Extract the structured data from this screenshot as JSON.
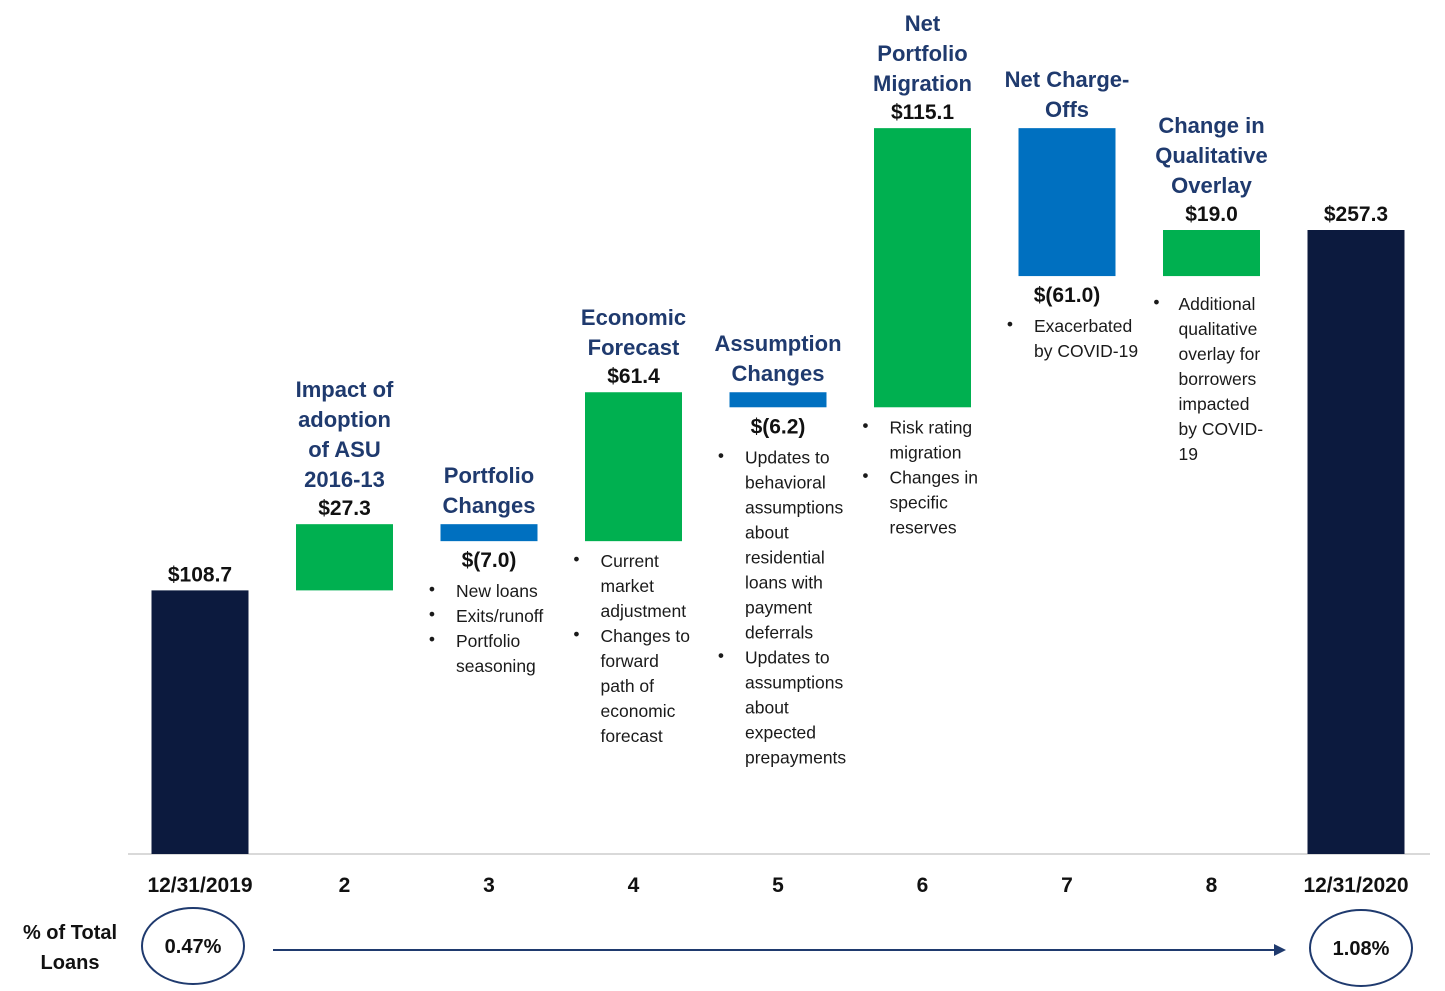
{
  "chart_data": {
    "type": "bar",
    "subtype": "waterfall",
    "categories": [
      "12/31/2019",
      "2",
      "3",
      "4",
      "5",
      "6",
      "7",
      "8",
      "12/31/2020"
    ],
    "steps": [
      {
        "category": "12/31/2019",
        "kind": "total",
        "value": 108.7,
        "label": "$108.7",
        "title": [],
        "bullets": [],
        "color": "#0c1a3e"
      },
      {
        "category": "2",
        "kind": "increase",
        "value": 27.3,
        "label": "$27.3",
        "title": [
          "Impact of",
          "adoption",
          "of ASU",
          "2016-13"
        ],
        "bullets": [],
        "color": "#00b050"
      },
      {
        "category": "3",
        "kind": "decrease",
        "value": -7.0,
        "label": "$(7.0)",
        "title": [
          "Portfolio",
          "Changes"
        ],
        "bullets": [
          [
            "New loans"
          ],
          [
            "Exits/runoff"
          ],
          [
            "Portfolio",
            "seasoning"
          ]
        ],
        "color": "#0070c0"
      },
      {
        "category": "4",
        "kind": "increase",
        "value": 61.4,
        "label": "$61.4",
        "title": [
          "Economic",
          "Forecast"
        ],
        "bullets": [
          [
            "Current",
            "market",
            "adjustment"
          ],
          [
            "Changes to",
            "forward",
            "path of",
            "economic",
            "forecast"
          ]
        ],
        "color": "#00b050"
      },
      {
        "category": "5",
        "kind": "decrease",
        "value": -6.2,
        "label": "$(6.2)",
        "title": [
          "Assumption",
          "Changes"
        ],
        "bullets": [
          [
            "Updates to",
            "behavioral",
            "assumptions",
            "about",
            "residential",
            "loans with",
            "payment",
            "deferrals"
          ],
          [
            "Updates to",
            "assumptions",
            "about",
            "expected",
            "prepayments"
          ]
        ],
        "color": "#0070c0"
      },
      {
        "category": "6",
        "kind": "increase",
        "value": 115.1,
        "label": "$115.1",
        "title": [
          "Net",
          "Portfolio",
          "Migration"
        ],
        "bullets": [
          [
            "Risk rating",
            "migration"
          ],
          [
            "Changes in",
            "specific",
            "reserves"
          ]
        ],
        "color": "#00b050"
      },
      {
        "category": "7",
        "kind": "decrease",
        "value": -61.0,
        "label": "$(61.0)",
        "title": [
          "Net Charge-",
          "Offs"
        ],
        "bullets": [
          [
            "Exacerbated",
            "by COVID-19"
          ]
        ],
        "color": "#0070c0"
      },
      {
        "category": "8",
        "kind": "increase",
        "value": 19.0,
        "label": "$19.0",
        "title": [
          "Change in",
          "Qualitative",
          "Overlay"
        ],
        "bullets": [
          [
            "Additional",
            "qualitative",
            "overlay for",
            "borrowers",
            "impacted",
            "by COVID-",
            "19"
          ]
        ],
        "color": "#00b050"
      },
      {
        "category": "12/31/2020",
        "kind": "total",
        "value": 257.3,
        "label": "$257.3",
        "title": [],
        "bullets": [],
        "color": "#0c1a3e"
      }
    ],
    "title": "",
    "xlabel": "",
    "ylabel": "",
    "ylim": [
      0,
      257.3
    ],
    "grid": false,
    "legend": "none"
  },
  "footer": {
    "label": [
      "% of Total",
      "Loans"
    ],
    "start_pct": "0.47%",
    "end_pct": "1.08%"
  },
  "colors": {
    "total": "#0c1a3e",
    "increase": "#00b050",
    "decrease": "#0070c0",
    "title": "#1f3a6e",
    "arrow": "#1f3a6e"
  }
}
